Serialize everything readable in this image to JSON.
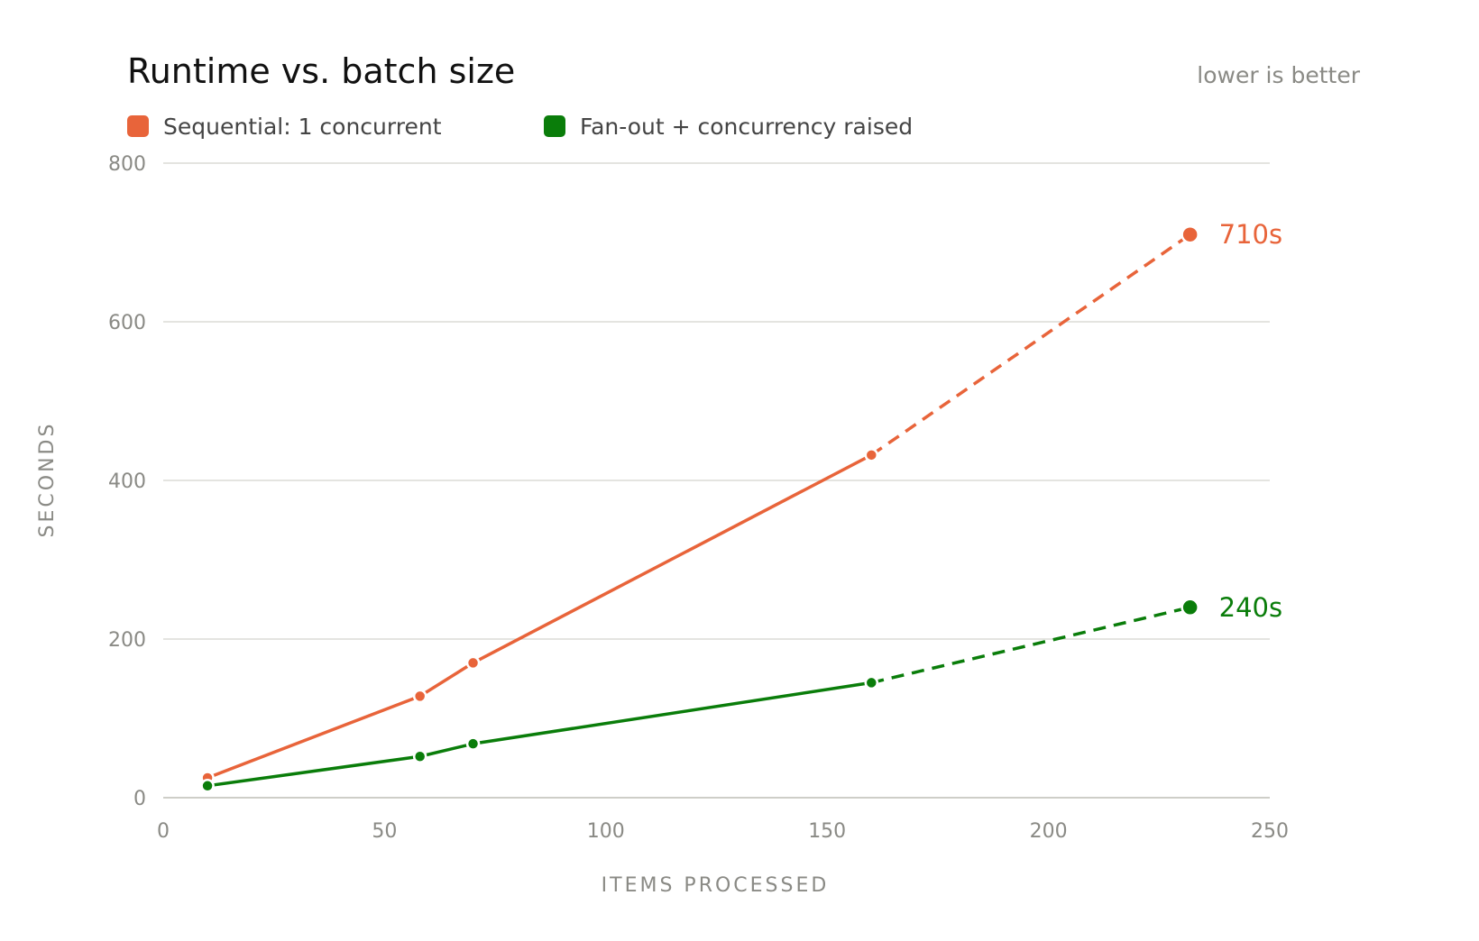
{
  "chart_data": {
    "type": "line",
    "title": "Runtime vs. batch size",
    "subtitle": "lower is better",
    "xlabel": "ITEMS PROCESSED",
    "ylabel": "SECONDS",
    "xlim": [
      0,
      250
    ],
    "ylim": [
      0,
      800
    ],
    "xticks": [
      0,
      50,
      100,
      150,
      200,
      250
    ],
    "yticks": [
      0,
      200,
      400,
      600,
      800
    ],
    "grid": "horizontal",
    "legend_position": "top-left",
    "series": [
      {
        "name": "Sequential: 1 concurrent",
        "color": "#e8643a",
        "points": [
          [
            10,
            25
          ],
          [
            58,
            128
          ],
          [
            70,
            170
          ],
          [
            160,
            432
          ]
        ],
        "projected": [
          [
            160,
            432
          ],
          [
            232,
            710
          ]
        ],
        "end_label": "710s"
      },
      {
        "name": "Fan-out + concurrency raised",
        "color": "#0a7d0a",
        "points": [
          [
            10,
            15
          ],
          [
            58,
            52
          ],
          [
            70,
            68
          ],
          [
            160,
            145
          ]
        ],
        "projected": [
          [
            160,
            145
          ],
          [
            232,
            240
          ]
        ],
        "end_label": "240s"
      }
    ]
  }
}
